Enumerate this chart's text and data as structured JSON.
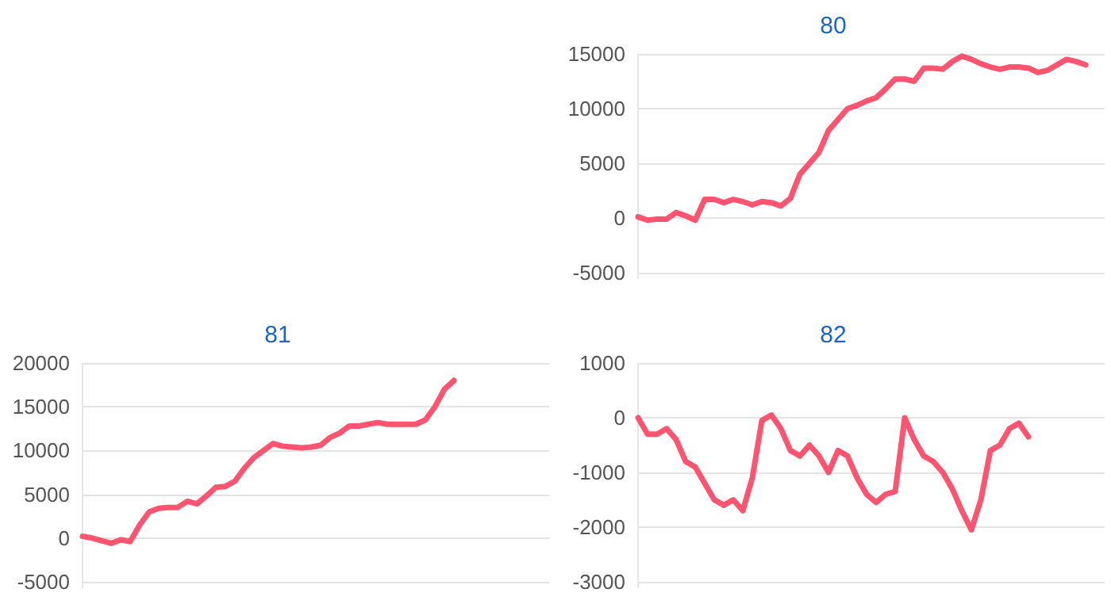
{
  "chart_data": [
    {
      "type": "line",
      "title": "80",
      "categories": [
        null,
        null,
        null,
        null,
        null,
        null,
        null,
        null,
        null,
        null,
        null,
        null,
        null,
        null,
        null,
        null,
        null,
        null,
        null,
        null,
        null,
        null,
        null,
        null,
        null,
        null,
        null,
        null,
        null,
        null,
        null,
        null,
        null,
        null,
        null,
        null,
        null,
        null,
        null,
        null,
        null,
        null,
        null,
        null,
        null,
        null,
        null,
        null,
        null,
        null
      ],
      "series": [
        {
          "color": "#ff5470",
          "values": [
            100,
            -200,
            -100,
            -100,
            500,
            200,
            -200,
            1700,
            1700,
            1400,
            1700,
            1500,
            1200,
            1500,
            1400,
            1100,
            1800,
            4000,
            5000,
            6000,
            8000,
            9000,
            10000,
            10300,
            10700,
            11000,
            11800,
            12700,
            12700,
            12500,
            13700,
            13700,
            13600,
            14300,
            14800,
            14500,
            14100,
            13800,
            13600,
            13800,
            13800,
            13700,
            13300,
            13500,
            14000,
            14500,
            14300,
            14000,
            null,
            null
          ]
        }
      ],
      "ylim": [
        -5000,
        15000
      ],
      "yticks": [
        -5000,
        0,
        5000,
        10000,
        15000
      ],
      "grid": "y",
      "marker": "none",
      "line_style": "solid"
    },
    {
      "type": "line",
      "title": "81",
      "categories": [
        null,
        null,
        null,
        null,
        null,
        null,
        null,
        null,
        null,
        null,
        null,
        null,
        null,
        null,
        null,
        null,
        null,
        null,
        null,
        null,
        null,
        null,
        null,
        null,
        null,
        null,
        null,
        null,
        null,
        null,
        null,
        null,
        null,
        null,
        null,
        null,
        null,
        null,
        null,
        null,
        null,
        null,
        null,
        null,
        null,
        null,
        null,
        null,
        null,
        null
      ],
      "series": [
        {
          "color": "#ff5470",
          "values": [
            200,
            0,
            -300,
            -600,
            -200,
            -400,
            1500,
            3000,
            3400,
            3500,
            3500,
            4200,
            3900,
            4800,
            5800,
            5900,
            6500,
            8000,
            9200,
            10000,
            10800,
            10500,
            10400,
            10300,
            10400,
            10600,
            11500,
            12000,
            12800,
            12800,
            13000,
            13200,
            13000,
            13000,
            13000,
            13000,
            13500,
            15000,
            17000,
            18000,
            null,
            null,
            null,
            null,
            null,
            null,
            null,
            null,
            null,
            null
          ]
        }
      ],
      "ylim": [
        -5000,
        20000
      ],
      "yticks": [
        -5000,
        0,
        5000,
        10000,
        15000,
        20000
      ],
      "grid": "y",
      "marker": "none",
      "line_style": "solid"
    },
    {
      "type": "line",
      "title": "82",
      "categories": [
        null,
        null,
        null,
        null,
        null,
        null,
        null,
        null,
        null,
        null,
        null,
        null,
        null,
        null,
        null,
        null,
        null,
        null,
        null,
        null,
        null,
        null,
        null,
        null,
        null,
        null,
        null,
        null,
        null,
        null,
        null,
        null,
        null,
        null,
        null,
        null,
        null,
        null,
        null,
        null,
        null,
        null,
        null,
        null,
        null,
        null,
        null,
        null,
        null,
        null
      ],
      "series": [
        {
          "color": "#ff5470",
          "values": [
            0,
            -300,
            -300,
            -200,
            -400,
            -800,
            -900,
            -1200,
            -1500,
            -1600,
            -1500,
            -1700,
            -1100,
            -50,
            50,
            -200,
            -600,
            -700,
            -500,
            -700,
            -1000,
            -600,
            -700,
            -1100,
            -1400,
            -1550,
            -1400,
            -1350,
            0,
            -400,
            -700,
            -800,
            -1000,
            -1300,
            -1700,
            -2050,
            -1500,
            -600,
            -500,
            -200,
            -100,
            -350,
            null,
            null,
            null,
            null,
            null,
            null,
            null,
            null
          ]
        }
      ],
      "ylim": [
        -3000,
        1000
      ],
      "yticks": [
        -3000,
        -2000,
        -1000,
        0,
        1000
      ],
      "grid": "y",
      "marker": "none",
      "line_style": "solid"
    }
  ]
}
